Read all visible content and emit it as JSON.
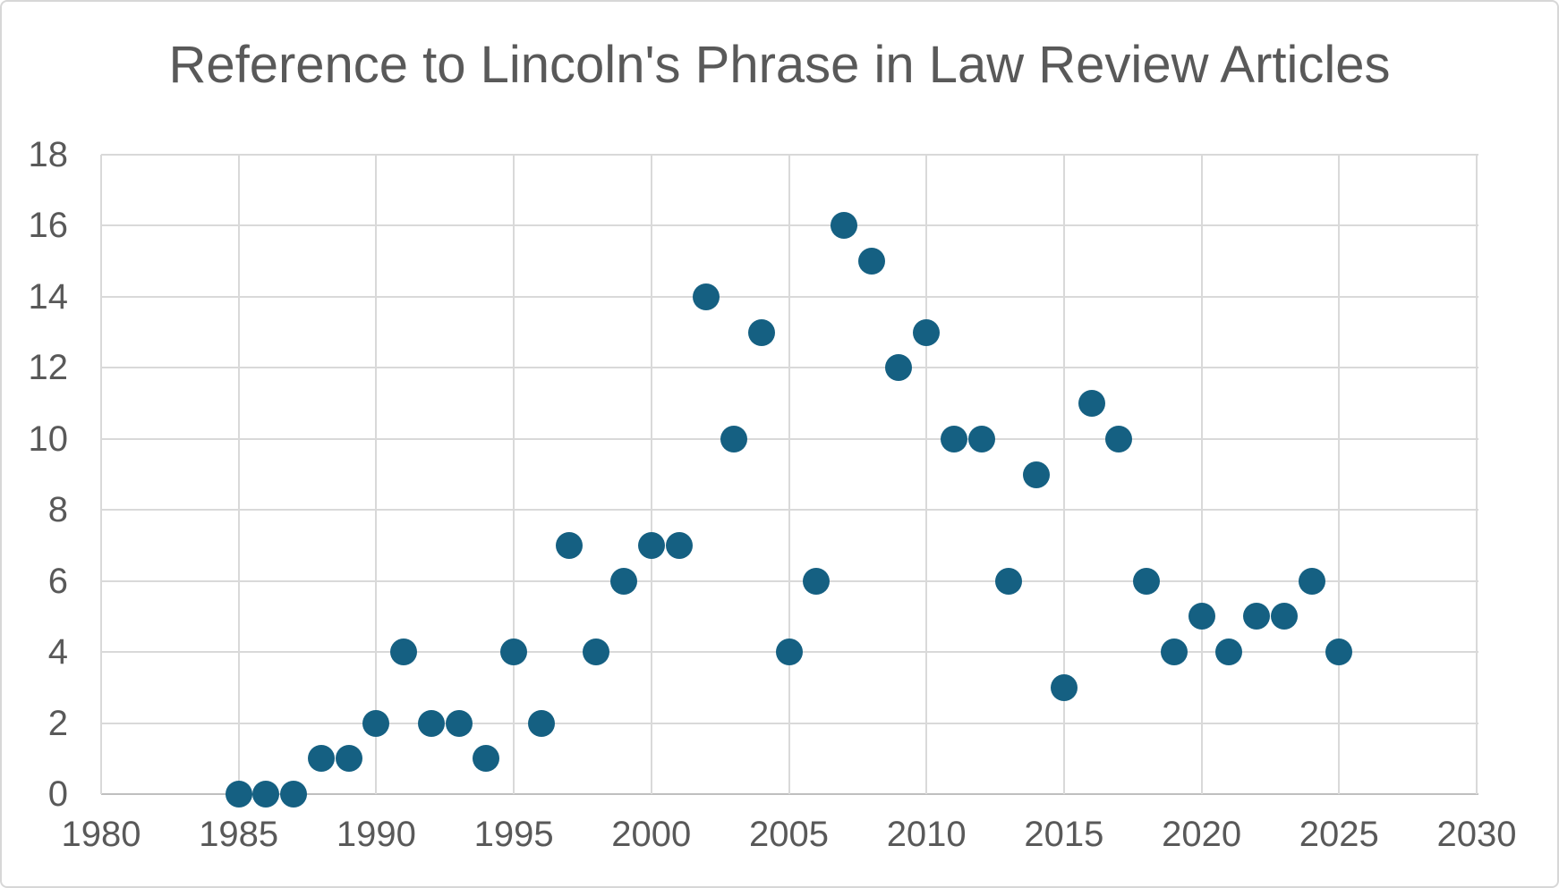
{
  "chart_data": {
    "type": "scatter",
    "title": "Reference to Lincoln's Phrase in Law Review Articles",
    "xlabel": "",
    "ylabel": "",
    "x": [
      1985,
      1986,
      1987,
      1988,
      1989,
      1990,
      1991,
      1992,
      1993,
      1994,
      1995,
      1996,
      1997,
      1998,
      1999,
      2000,
      2001,
      2002,
      2003,
      2004,
      2005,
      2006,
      2007,
      2008,
      2009,
      2010,
      2011,
      2012,
      2013,
      2014,
      2015,
      2016,
      2017,
      2018,
      2019,
      2020,
      2021,
      2022,
      2023,
      2024,
      2025
    ],
    "y": [
      0,
      0,
      0,
      1,
      1,
      2,
      4,
      2,
      2,
      1,
      4,
      2,
      7,
      4,
      6,
      7,
      7,
      14,
      10,
      13,
      4,
      6,
      16,
      15,
      12,
      13,
      10,
      10,
      6,
      9,
      3,
      11,
      10,
      6,
      4,
      5,
      4,
      5,
      5,
      6,
      4
    ],
    "xlim": [
      1980,
      2030
    ],
    "ylim": [
      0,
      18
    ],
    "x_ticks": [
      1980,
      1985,
      1990,
      1995,
      2000,
      2005,
      2010,
      2015,
      2020,
      2025,
      2030
    ],
    "y_ticks": [
      0,
      2,
      4,
      6,
      8,
      10,
      12,
      14,
      16,
      18
    ],
    "grid": "on",
    "legend": "none",
    "colors": {
      "marker": "#156082",
      "gridline": "#d9d9d9",
      "axis_line": "#bfbfbf",
      "tick_text": "#595959",
      "title_text": "#595959",
      "background": "#ffffff",
      "frame_border": "#d7d7d7"
    }
  }
}
